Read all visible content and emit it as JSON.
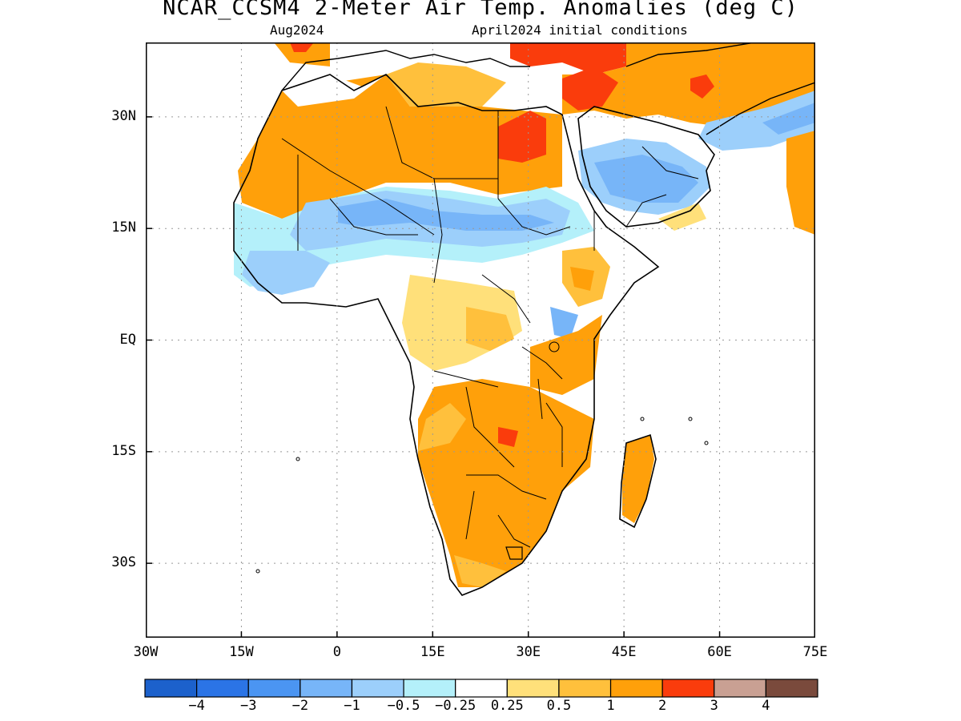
{
  "title": "NCAR_CCSM4 2-Meter Air Temp. Anomalies (deg C)",
  "subtitle_left": "Aug2024",
  "subtitle_right": "April2024 initial conditions",
  "axes": {
    "lon_range": [
      -30,
      75
    ],
    "lat_range": [
      -40,
      40
    ],
    "lat_ticks": [
      {
        "value": 30,
        "label": "30N"
      },
      {
        "value": 15,
        "label": "15N"
      },
      {
        "value": 0,
        "label": "EQ"
      },
      {
        "value": -15,
        "label": "15S"
      },
      {
        "value": -30,
        "label": "30S"
      }
    ],
    "lon_ticks": [
      {
        "value": -30,
        "label": "30W"
      },
      {
        "value": -15,
        "label": "15W"
      },
      {
        "value": 0,
        "label": "0"
      },
      {
        "value": 15,
        "label": "15E"
      },
      {
        "value": 30,
        "label": "30E"
      },
      {
        "value": 45,
        "label": "45E"
      },
      {
        "value": 60,
        "label": "60E"
      },
      {
        "value": 75,
        "label": "75E"
      }
    ],
    "grid": "dotted"
  },
  "colorbar": {
    "colors": [
      "#1c61cc",
      "#2b74e6",
      "#4b95f2",
      "#77b5f8",
      "#9ccffb",
      "#b4f0fa",
      "#ffffff",
      "#ffe07a",
      "#ffc03c",
      "#ffa00a",
      "#fa3c0c",
      "#c9a093",
      "#7a4a3c"
    ],
    "labels": [
      "−4",
      "−3",
      "−2",
      "−1",
      "−0.5",
      "−0.25",
      "0.25",
      "0.5",
      "1",
      "2",
      "3",
      "4"
    ]
  },
  "regions": [
    {
      "name": "Sahara warm band",
      "anomaly": "1 to 2",
      "color": "#ffa00a"
    },
    {
      "name": "Egypt / Libya hot spot",
      "anomaly": "2 to 3",
      "color": "#fa3c0c"
    },
    {
      "name": "Levant / Turkey hot spot",
      "anomaly": "2 to 3",
      "color": "#fa3c0c"
    },
    {
      "name": "Sahel cool band",
      "anomaly": "-1 to -0.25",
      "color": "#77b5f8"
    },
    {
      "name": "Arabian Peninsula cool",
      "anomaly": "-2 to -0.5",
      "color": "#77b5f8"
    },
    {
      "name": "Southern Africa warm",
      "anomaly": "1 to 2",
      "color": "#ffa00a"
    },
    {
      "name": "Madagascar warm",
      "anomaly": "1 to 2",
      "color": "#ffa00a"
    }
  ]
}
